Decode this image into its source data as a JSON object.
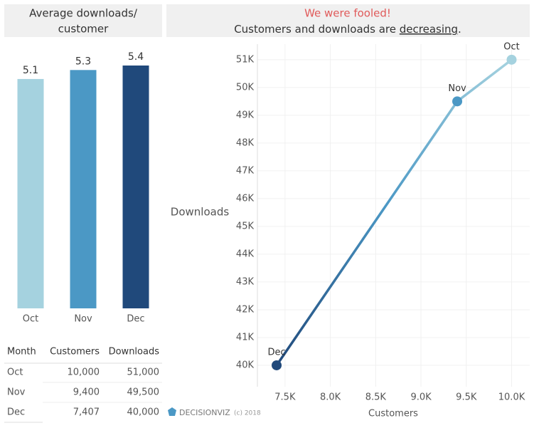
{
  "chart_data": [
    {
      "type": "bar",
      "title_lines": [
        "Average downloads/",
        "customer"
      ],
      "categories": [
        "Oct",
        "Nov",
        "Dec"
      ],
      "values": [
        5.1,
        5.3,
        5.4
      ],
      "colors": [
        "#a5d2df",
        "#4b98c5",
        "#20497b"
      ]
    },
    {
      "type": "line",
      "title": "We were fooled!",
      "subtitle_parts": [
        "Customers and downloads are ",
        "decreasing",
        "."
      ],
      "x_label": "Customers",
      "y_label": "Downloads",
      "point_labels": [
        "Oct",
        "Nov",
        "Dec"
      ],
      "x": [
        10000,
        9400,
        7407
      ],
      "values": [
        51000,
        49500,
        40000
      ],
      "colors": [
        "#a5d2df",
        "#4b98c5",
        "#20497b"
      ],
      "xlim": [
        7195,
        10200
      ],
      "ylim": [
        39230,
        51560
      ],
      "xticks": [
        {
          "value": 7500,
          "label": "7.5K"
        },
        {
          "value": 8000,
          "label": "8.0K"
        },
        {
          "value": 8500,
          "label": "8.5K"
        },
        {
          "value": 9000,
          "label": "9.0K"
        },
        {
          "value": 9500,
          "label": "9.5K"
        },
        {
          "value": 10000,
          "label": "10.0K"
        }
      ],
      "yticks": [
        {
          "value": 40000,
          "label": "40K"
        },
        {
          "value": 41000,
          "label": "41K"
        },
        {
          "value": 42000,
          "label": "42K"
        },
        {
          "value": 43000,
          "label": "43K"
        },
        {
          "value": 44000,
          "label": "44K"
        },
        {
          "value": 45000,
          "label": "45K"
        },
        {
          "value": 46000,
          "label": "46K"
        },
        {
          "value": 47000,
          "label": "47K"
        },
        {
          "value": 48000,
          "label": "48K"
        },
        {
          "value": 49000,
          "label": "49K"
        },
        {
          "value": 50000,
          "label": "50K"
        },
        {
          "value": 51000,
          "label": "51K"
        }
      ],
      "grid": true
    }
  ],
  "table": {
    "columns": [
      "Month",
      "Customers",
      "Downloads"
    ],
    "rows": [
      [
        "Oct",
        "10,000",
        "51,000"
      ],
      [
        "Nov",
        "9,400",
        "49,500"
      ],
      [
        "Dec",
        "7,407",
        "40,000"
      ]
    ]
  },
  "footer": {
    "brand": "DECISIONVIZ",
    "copyright": "(c) 2018"
  }
}
